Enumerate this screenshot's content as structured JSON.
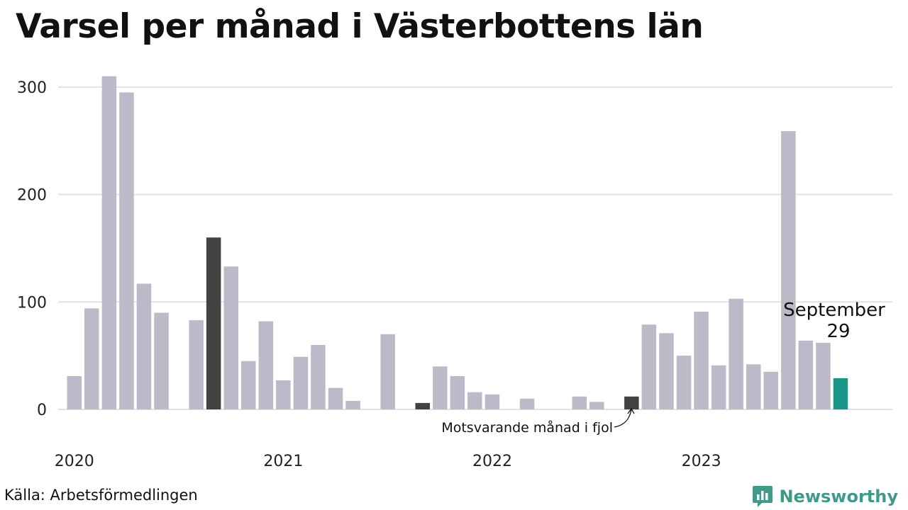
{
  "title": "Varsel per månad i Västerbottens län",
  "source": "Källa: Arbetsförmedlingen",
  "brand": "Newsworthy",
  "colors": {
    "bar": "#bcbac9",
    "highlight": "#424242",
    "current": "#1a9688",
    "grid": "#e2e2e6",
    "brand": "#3f9a8a"
  },
  "annotation": "Motsvarande månad i fjol",
  "callout": {
    "month": "September",
    "value": "29"
  },
  "chart_data": {
    "type": "bar",
    "title": "Varsel per månad i Västerbottens län",
    "y_ticks": [
      0,
      100,
      200,
      300
    ],
    "ylim": [
      0,
      320
    ],
    "x_tick_labels": [
      "2020",
      "2021",
      "2022",
      "2023"
    ],
    "grid": true,
    "values": [
      31,
      94,
      310,
      295,
      117,
      90,
      0,
      83,
      160,
      133,
      45,
      82,
      27,
      49,
      60,
      20,
      8,
      0,
      70,
      0,
      6,
      40,
      31,
      16,
      14,
      0,
      10,
      0,
      0,
      12,
      7,
      0,
      12,
      79,
      71,
      50,
      91,
      41,
      103,
      42,
      35,
      259,
      64,
      62,
      29
    ],
    "highlight_indices": [
      8,
      20,
      32
    ],
    "current_index": 44
  }
}
